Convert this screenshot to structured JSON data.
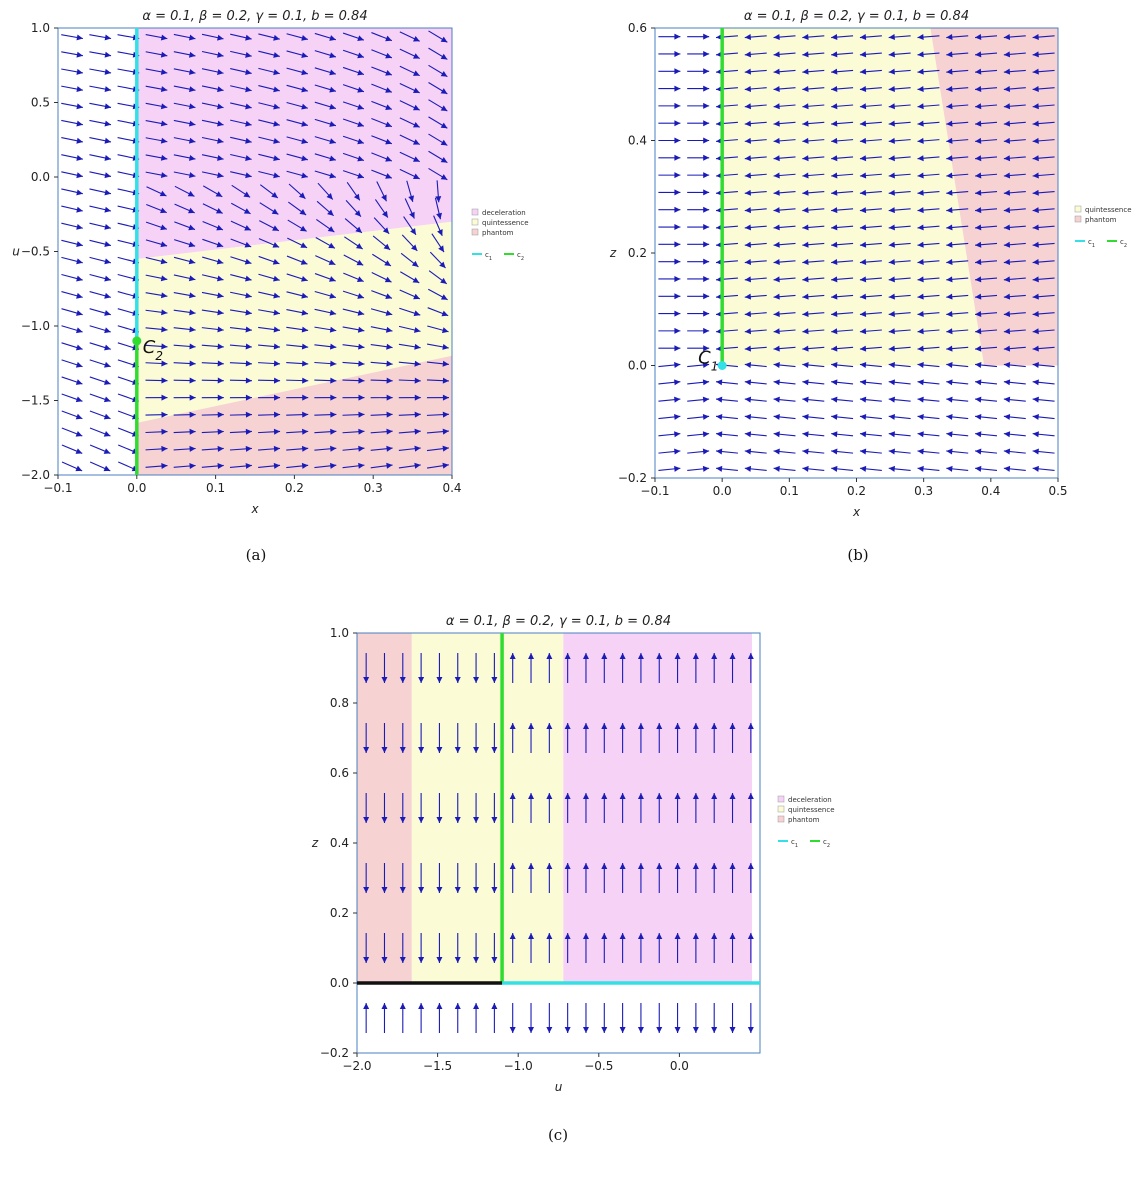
{
  "colors": {
    "frame": "#4a7fc1",
    "arrow": "#1b1bb8",
    "deceleration": "#f6d2f6",
    "quintessence": "#fbfbd6",
    "phantom": "#f6d2d2",
    "c1": "#33e0e6",
    "c2": "#2fdc2f",
    "separatrix": "#111111"
  },
  "chart_data": [
    {
      "id": "a",
      "type": "streamplot",
      "title": "α = 0.1, β = 0.2, γ = 0.1, b = 0.84",
      "xlabel": "x",
      "ylabel": "u",
      "caption": "(a)",
      "xlim": [
        -0.1,
        0.4
      ],
      "ylim": [
        -2.0,
        1.0
      ],
      "xticks": [
        "−0.1",
        "0.0",
        "0.1",
        "0.2",
        "0.3",
        "0.4"
      ],
      "xtick_values": [
        -0.1,
        0.0,
        0.1,
        0.2,
        0.3,
        0.4
      ],
      "yticks": [
        "1.0",
        "0.5",
        "0.0",
        "−0.5",
        "−1.0",
        "−1.5",
        "−2.0"
      ],
      "ytick_values": [
        1.0,
        0.5,
        0.0,
        -0.5,
        -1.0,
        -1.5,
        -2.0
      ],
      "regions": [
        {
          "name": "deceleration",
          "polygon": [
            [
              0.0,
              1.0
            ],
            [
              0.4,
              1.0
            ],
            [
              0.4,
              -0.3
            ],
            [
              0.0,
              -0.55
            ],
            [
              0.0,
              1.0
            ]
          ]
        },
        {
          "name": "quintessence",
          "polygon": [
            [
              0.0,
              -0.55
            ],
            [
              0.4,
              -0.3
            ],
            [
              0.4,
              -1.2
            ],
            [
              0.0,
              -1.65
            ]
          ]
        },
        {
          "name": "phantom",
          "polygon": [
            [
              0.0,
              -1.65
            ],
            [
              0.4,
              -1.2
            ],
            [
              0.4,
              -2.0
            ],
            [
              0.0,
              -2.0
            ]
          ]
        }
      ],
      "curves": [
        {
          "name": "c1",
          "points": [
            [
              0.0,
              1.0
            ],
            [
              0.0,
              -1.1
            ]
          ]
        },
        {
          "name": "c2",
          "points": [
            [
              0.0,
              -1.1
            ],
            [
              0.0,
              -2.0
            ]
          ]
        }
      ],
      "critical_points": [
        {
          "label": "C",
          "sub": "2",
          "x": 0.0,
          "y": -1.1,
          "color": "c2"
        }
      ],
      "legend": {
        "regions": [
          "deceleration",
          "quintessence",
          "phantom"
        ],
        "lines": [
          "c1",
          "c2"
        ]
      }
    },
    {
      "id": "b",
      "type": "streamplot",
      "title": "α = 0.1, β = 0.2, γ = 0.1, b = 0.84",
      "xlabel": "x",
      "ylabel": "z",
      "caption": "(b)",
      "xlim": [
        -0.1,
        0.5
      ],
      "ylim": [
        -0.2,
        0.6
      ],
      "xticks": [
        "−0.1",
        "0.0",
        "0.1",
        "0.2",
        "0.3",
        "0.4",
        "0.5"
      ],
      "xtick_values": [
        -0.1,
        0.0,
        0.1,
        0.2,
        0.3,
        0.4,
        0.5
      ],
      "yticks": [
        "0.6",
        "0.4",
        "0.2",
        "0.0",
        "−0.2"
      ],
      "ytick_values": [
        0.6,
        0.4,
        0.2,
        0.0,
        -0.2
      ],
      "regions": [
        {
          "name": "quintessence",
          "polygon": [
            [
              0.0,
              0.6
            ],
            [
              0.31,
              0.6
            ],
            [
              0.39,
              0.0
            ],
            [
              0.0,
              0.0
            ]
          ]
        },
        {
          "name": "phantom",
          "polygon": [
            [
              0.31,
              0.6
            ],
            [
              0.5,
              0.6
            ],
            [
              0.5,
              0.0
            ],
            [
              0.39,
              0.0
            ]
          ]
        }
      ],
      "curves": [
        {
          "name": "c2",
          "points": [
            [
              0.0,
              0.6
            ],
            [
              0.0,
              0.0
            ]
          ]
        }
      ],
      "critical_points": [
        {
          "label": "C",
          "sub": "1",
          "x": 0.0,
          "y": 0.0,
          "color": "c1"
        }
      ],
      "legend": {
        "regions": [
          "quintessence",
          "phantom"
        ],
        "lines": [
          "c1",
          "c2"
        ]
      }
    },
    {
      "id": "c",
      "type": "streamplot",
      "title": "α = 0.1, β = 0.2, γ = 0.1, b = 0.84",
      "xlabel": "u",
      "ylabel": "z",
      "caption": "(c)",
      "xlim": [
        -2.0,
        0.5
      ],
      "ylim": [
        -0.2,
        1.0
      ],
      "xticks": [
        "−2.0",
        "−1.5",
        "−1.0",
        "−0.5",
        "0.0"
      ],
      "xtick_values": [
        -2.0,
        -1.5,
        -1.0,
        -0.5,
        0.0
      ],
      "yticks": [
        "1.0",
        "0.8",
        "0.6",
        "0.4",
        "0.2",
        "0.0",
        "−0.2"
      ],
      "ytick_values": [
        1.0,
        0.8,
        0.6,
        0.4,
        0.2,
        0.0,
        -0.2
      ],
      "regions": [
        {
          "name": "phantom",
          "polygon": [
            [
              -2.0,
              1.0
            ],
            [
              -1.66,
              1.0
            ],
            [
              -1.66,
              0.0
            ],
            [
              -2.0,
              0.0
            ]
          ]
        },
        {
          "name": "quintessence",
          "polygon": [
            [
              -1.66,
              1.0
            ],
            [
              -0.72,
              1.0
            ],
            [
              -0.72,
              0.0
            ],
            [
              -1.66,
              0.0
            ]
          ]
        },
        {
          "name": "deceleration",
          "polygon": [
            [
              -0.72,
              1.0
            ],
            [
              0.45,
              1.0
            ],
            [
              0.45,
              0.0
            ],
            [
              -0.72,
              0.0
            ]
          ]
        }
      ],
      "curves": [
        {
          "name": "c2",
          "points": [
            [
              -1.1,
              1.0
            ],
            [
              -1.1,
              0.0
            ]
          ]
        },
        {
          "name": "c1",
          "points": [
            [
              -1.1,
              0.0
            ],
            [
              0.5,
              0.0
            ]
          ]
        },
        {
          "name": "separatrix",
          "points": [
            [
              -2.0,
              0.0
            ],
            [
              -1.1,
              0.0
            ]
          ]
        }
      ],
      "critical_points": [],
      "legend": {
        "regions": [
          "deceleration",
          "quintessence",
          "phantom"
        ],
        "lines": [
          "c1",
          "c2"
        ]
      }
    }
  ],
  "legend_labels": {
    "deceleration": "deceleration",
    "quintessence": "quintessence",
    "phantom": "phantom",
    "c1": "c",
    "c1_sub": "1",
    "c2": "c",
    "c2_sub": "2"
  }
}
